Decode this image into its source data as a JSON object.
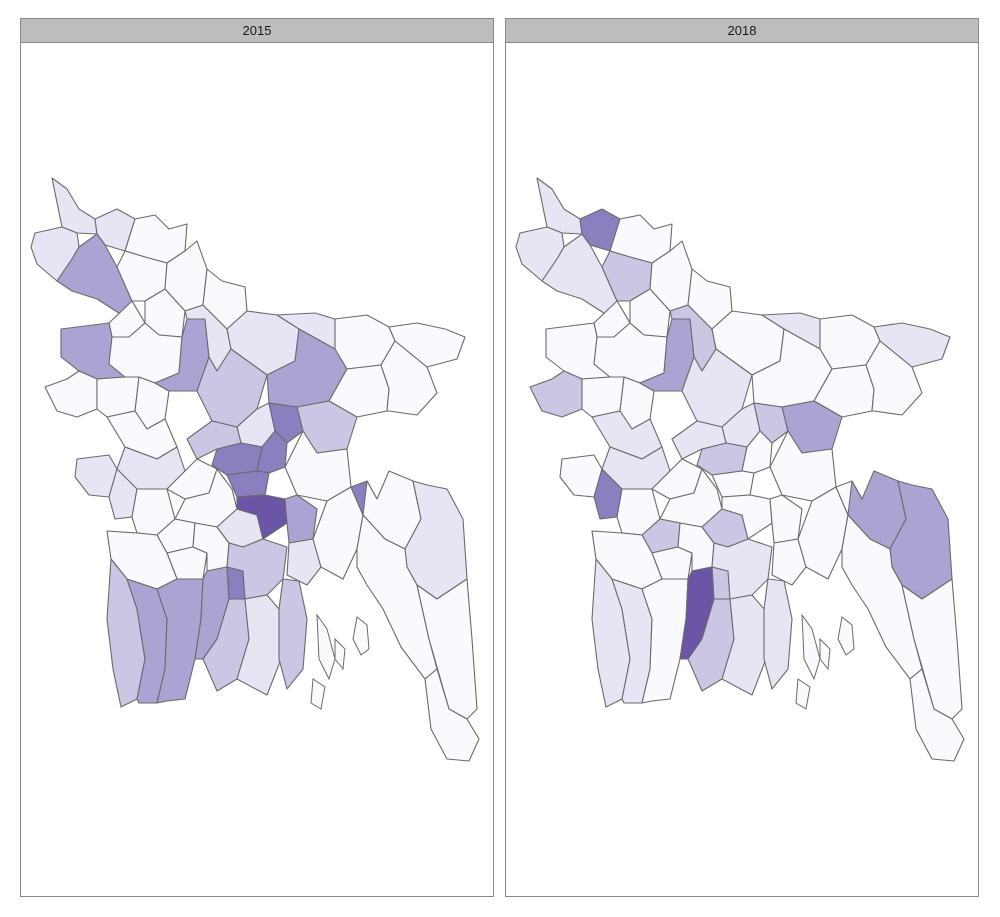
{
  "facets": [
    {
      "label": "2015"
    },
    {
      "label": "2018"
    }
  ],
  "palette": {
    "level0": "#faf9fd",
    "level1": "#e7e5f3",
    "level2": "#cac6e3",
    "level3": "#aba3d2",
    "level4": "#8b7fbf",
    "level5": "#6a55a6",
    "border": "#6b6b6b"
  }
}
